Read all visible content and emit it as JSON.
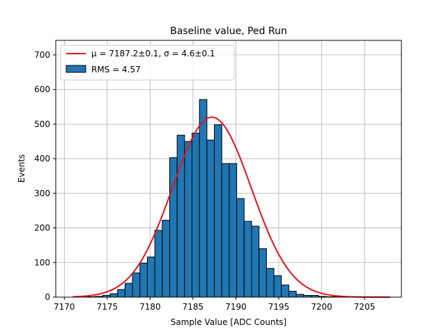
{
  "chart_data": {
    "type": "bar",
    "title": "Baseline value, Ped Run",
    "xlabel": "Sample Value [ADC Counts]",
    "ylabel": "Events",
    "xlim": [
      7169.0,
      7209.3
    ],
    "ylim": [
      0,
      742
    ],
    "xticks": [
      7170,
      7175,
      7180,
      7185,
      7190,
      7195,
      7200,
      7205
    ],
    "yticks": [
      0,
      100,
      200,
      300,
      400,
      500,
      600,
      700
    ],
    "grid": true,
    "legend_position": "top-left",
    "histogram": {
      "name": "RMS = 4.57",
      "color": "#1f77b4",
      "edge_color": "#000000",
      "bin_width": 0.868,
      "bins": [
        {
          "left": 7171.0,
          "count": 1
        },
        {
          "left": 7171.868,
          "count": 2
        },
        {
          "left": 7172.736,
          "count": 1
        },
        {
          "left": 7173.604,
          "count": 2
        },
        {
          "left": 7174.472,
          "count": 5
        },
        {
          "left": 7175.34,
          "count": 10
        },
        {
          "left": 7176.208,
          "count": 22
        },
        {
          "left": 7177.076,
          "count": 40
        },
        {
          "left": 7177.944,
          "count": 70
        },
        {
          "left": 7178.812,
          "count": 98
        },
        {
          "left": 7179.68,
          "count": 116
        },
        {
          "left": 7180.548,
          "count": 193
        },
        {
          "left": 7181.416,
          "count": 222
        },
        {
          "left": 7182.284,
          "count": 403
        },
        {
          "left": 7183.152,
          "count": 468
        },
        {
          "left": 7184.02,
          "count": 450
        },
        {
          "left": 7184.888,
          "count": 474
        },
        {
          "left": 7185.756,
          "count": 571
        },
        {
          "left": 7186.624,
          "count": 454
        },
        {
          "left": 7187.492,
          "count": 498
        },
        {
          "left": 7188.36,
          "count": 386
        },
        {
          "left": 7189.228,
          "count": 386
        },
        {
          "left": 7190.096,
          "count": 285
        },
        {
          "left": 7190.964,
          "count": 219
        },
        {
          "left": 7191.832,
          "count": 205
        },
        {
          "left": 7192.7,
          "count": 140
        },
        {
          "left": 7193.568,
          "count": 83
        },
        {
          "left": 7194.436,
          "count": 62
        },
        {
          "left": 7195.304,
          "count": 35
        },
        {
          "left": 7196.172,
          "count": 17
        },
        {
          "left": 7197.04,
          "count": 8
        },
        {
          "left": 7197.908,
          "count": 5
        },
        {
          "left": 7198.776,
          "count": 5
        },
        {
          "left": 7199.644,
          "count": 2
        },
        {
          "left": 7200.512,
          "count": 1
        },
        {
          "left": 7201.38,
          "count": 1
        },
        {
          "left": 7202.248,
          "count": 1
        },
        {
          "left": 7203.116,
          "count": 1
        }
      ]
    },
    "fit": {
      "name": "$\\mu = 7187.2\\pm0.1$, $\\sigma = 4.6\\pm0.1$",
      "color": "#e8101a",
      "mu": 7187.2,
      "sigma": 4.6,
      "amplitude": 520,
      "x_range": [
        7171.0,
        7208.0
      ]
    }
  },
  "legend": {
    "fit_label": "μ = 7187.2±0.1, σ = 4.6±0.1",
    "hist_label": "RMS = 4.57"
  }
}
